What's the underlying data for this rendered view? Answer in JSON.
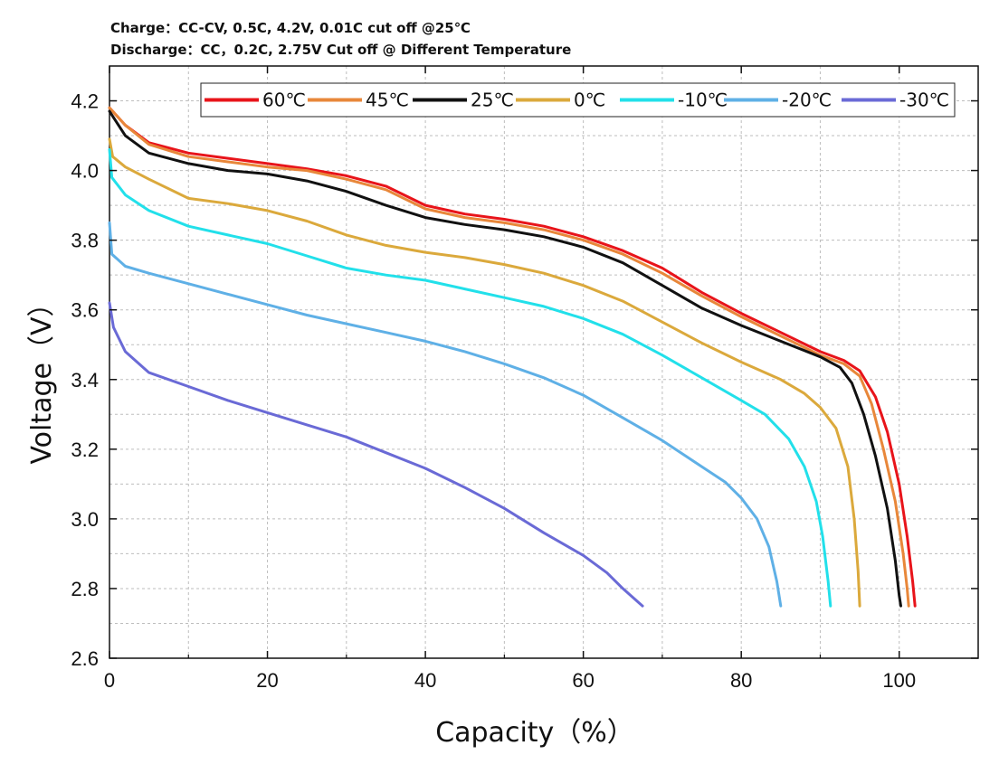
{
  "header": {
    "line1": "Charge：CC-CV, 0.5C, 4.2V, 0.01C cut off @25℃",
    "line2": "Discharge：CC，0.2C, 2.75V Cut off @ Different Temperature"
  },
  "chart_data": {
    "type": "line",
    "title": "",
    "xlabel": "Capacity（%）",
    "ylabel": "Voltage（V）",
    "xlim": [
      0,
      110
    ],
    "ylim": [
      2.6,
      4.3
    ],
    "xticks": [
      0,
      20,
      40,
      60,
      80,
      100
    ],
    "yticks": [
      2.6,
      2.8,
      3.0,
      3.2,
      3.4,
      3.6,
      3.8,
      4.0,
      4.2
    ],
    "ytick_labels": [
      "2.6",
      "2.8",
      "3.0",
      "3.2",
      "3.4",
      "3.6",
      "3.8",
      "4.0",
      "4.2"
    ],
    "grid": true,
    "legend_position": "top-right",
    "series": [
      {
        "name": "60℃",
        "color": "#e8141a",
        "points": [
          [
            0,
            4.18
          ],
          [
            2,
            4.13
          ],
          [
            5,
            4.08
          ],
          [
            10,
            4.05
          ],
          [
            15,
            4.035
          ],
          [
            20,
            4.02
          ],
          [
            25,
            4.005
          ],
          [
            30,
            3.985
          ],
          [
            35,
            3.955
          ],
          [
            40,
            3.9
          ],
          [
            45,
            3.875
          ],
          [
            50,
            3.86
          ],
          [
            55,
            3.84
          ],
          [
            60,
            3.81
          ],
          [
            65,
            3.77
          ],
          [
            70,
            3.72
          ],
          [
            75,
            3.65
          ],
          [
            80,
            3.59
          ],
          [
            85,
            3.535
          ],
          [
            90,
            3.48
          ],
          [
            93,
            3.455
          ],
          [
            95,
            3.425
          ],
          [
            97,
            3.35
          ],
          [
            98.5,
            3.25
          ],
          [
            100,
            3.1
          ],
          [
            101,
            2.95
          ],
          [
            101.7,
            2.82
          ],
          [
            102,
            2.75
          ]
        ]
      },
      {
        "name": "45℃",
        "color": "#e8873a",
        "points": [
          [
            0,
            4.18
          ],
          [
            2,
            4.13
          ],
          [
            5,
            4.075
          ],
          [
            10,
            4.04
          ],
          [
            15,
            4.025
          ],
          [
            20,
            4.01
          ],
          [
            25,
            4.0
          ],
          [
            30,
            3.975
          ],
          [
            35,
            3.945
          ],
          [
            40,
            3.89
          ],
          [
            45,
            3.865
          ],
          [
            50,
            3.85
          ],
          [
            55,
            3.83
          ],
          [
            60,
            3.8
          ],
          [
            65,
            3.76
          ],
          [
            70,
            3.705
          ],
          [
            75,
            3.64
          ],
          [
            80,
            3.58
          ],
          [
            85,
            3.525
          ],
          [
            90,
            3.47
          ],
          [
            93,
            3.445
          ],
          [
            95,
            3.41
          ],
          [
            96.5,
            3.33
          ],
          [
            98,
            3.2
          ],
          [
            99.5,
            3.05
          ],
          [
            100.5,
            2.9
          ],
          [
            101,
            2.8
          ],
          [
            101.2,
            2.75
          ]
        ]
      },
      {
        "name": "25℃",
        "color": "#111111",
        "points": [
          [
            0,
            4.17
          ],
          [
            2,
            4.1
          ],
          [
            5,
            4.05
          ],
          [
            10,
            4.02
          ],
          [
            15,
            4.0
          ],
          [
            20,
            3.99
          ],
          [
            25,
            3.97
          ],
          [
            30,
            3.94
          ],
          [
            35,
            3.9
          ],
          [
            40,
            3.865
          ],
          [
            45,
            3.845
          ],
          [
            50,
            3.83
          ],
          [
            55,
            3.81
          ],
          [
            60,
            3.78
          ],
          [
            65,
            3.735
          ],
          [
            70,
            3.67
          ],
          [
            75,
            3.605
          ],
          [
            80,
            3.555
          ],
          [
            85,
            3.51
          ],
          [
            90,
            3.465
          ],
          [
            92.5,
            3.435
          ],
          [
            94,
            3.39
          ],
          [
            95.5,
            3.3
          ],
          [
            97,
            3.18
          ],
          [
            98.5,
            3.03
          ],
          [
            99.5,
            2.88
          ],
          [
            100,
            2.78
          ],
          [
            100.2,
            2.75
          ]
        ]
      },
      {
        "name": "0℃",
        "color": "#dba93c",
        "points": [
          [
            0,
            4.09
          ],
          [
            0.4,
            4.04
          ],
          [
            2,
            4.01
          ],
          [
            5,
            3.975
          ],
          [
            10,
            3.92
          ],
          [
            15,
            3.905
          ],
          [
            20,
            3.885
          ],
          [
            25,
            3.855
          ],
          [
            30,
            3.815
          ],
          [
            35,
            3.785
          ],
          [
            40,
            3.765
          ],
          [
            45,
            3.75
          ],
          [
            50,
            3.73
          ],
          [
            55,
            3.705
          ],
          [
            60,
            3.67
          ],
          [
            65,
            3.625
          ],
          [
            70,
            3.565
          ],
          [
            75,
            3.505
          ],
          [
            80,
            3.45
          ],
          [
            85,
            3.4
          ],
          [
            88,
            3.36
          ],
          [
            90,
            3.32
          ],
          [
            92,
            3.26
          ],
          [
            93.5,
            3.15
          ],
          [
            94.3,
            3.0
          ],
          [
            94.8,
            2.85
          ],
          [
            95,
            2.75
          ]
        ]
      },
      {
        "name": "-10℃",
        "color": "#22e0ea",
        "points": [
          [
            0,
            4.06
          ],
          [
            0.3,
            3.98
          ],
          [
            2,
            3.93
          ],
          [
            5,
            3.885
          ],
          [
            10,
            3.84
          ],
          [
            15,
            3.815
          ],
          [
            20,
            3.79
          ],
          [
            25,
            3.755
          ],
          [
            30,
            3.72
          ],
          [
            35,
            3.7
          ],
          [
            40,
            3.685
          ],
          [
            45,
            3.66
          ],
          [
            50,
            3.635
          ],
          [
            55,
            3.61
          ],
          [
            60,
            3.575
          ],
          [
            65,
            3.53
          ],
          [
            70,
            3.47
          ],
          [
            75,
            3.405
          ],
          [
            80,
            3.34
          ],
          [
            83,
            3.3
          ],
          [
            86,
            3.23
          ],
          [
            88,
            3.15
          ],
          [
            89.5,
            3.05
          ],
          [
            90.3,
            2.95
          ],
          [
            91,
            2.82
          ],
          [
            91.3,
            2.75
          ]
        ]
      },
      {
        "name": "-20℃",
        "color": "#5fb0e6",
        "points": [
          [
            0,
            3.85
          ],
          [
            0.3,
            3.76
          ],
          [
            2,
            3.725
          ],
          [
            5,
            3.705
          ],
          [
            10,
            3.675
          ],
          [
            15,
            3.645
          ],
          [
            20,
            3.615
          ],
          [
            25,
            3.585
          ],
          [
            30,
            3.56
          ],
          [
            35,
            3.535
          ],
          [
            40,
            3.51
          ],
          [
            45,
            3.48
          ],
          [
            50,
            3.445
          ],
          [
            55,
            3.405
          ],
          [
            60,
            3.355
          ],
          [
            65,
            3.29
          ],
          [
            70,
            3.225
          ],
          [
            75,
            3.15
          ],
          [
            78,
            3.105
          ],
          [
            80,
            3.06
          ],
          [
            82,
            3.0
          ],
          [
            83.5,
            2.92
          ],
          [
            84.5,
            2.82
          ],
          [
            85,
            2.75
          ]
        ]
      },
      {
        "name": "-30℃",
        "color": "#6a6ad6",
        "points": [
          [
            0,
            3.62
          ],
          [
            0.5,
            3.55
          ],
          [
            2,
            3.48
          ],
          [
            5,
            3.42
          ],
          [
            10,
            3.38
          ],
          [
            15,
            3.34
          ],
          [
            20,
            3.305
          ],
          [
            25,
            3.27
          ],
          [
            30,
            3.235
          ],
          [
            35,
            3.19
          ],
          [
            40,
            3.145
          ],
          [
            45,
            3.09
          ],
          [
            50,
            3.03
          ],
          [
            55,
            2.96
          ],
          [
            60,
            2.895
          ],
          [
            63,
            2.845
          ],
          [
            65,
            2.8
          ],
          [
            67,
            2.76
          ],
          [
            67.5,
            2.75
          ]
        ]
      }
    ]
  }
}
